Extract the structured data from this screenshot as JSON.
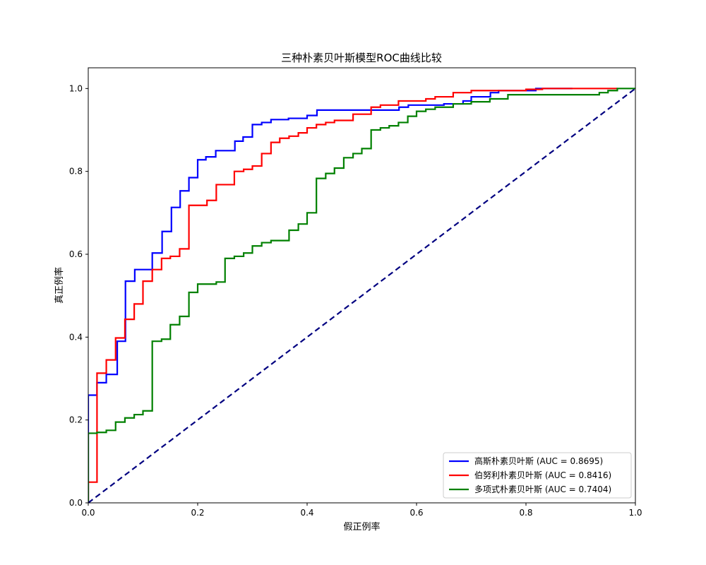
{
  "chart_data": {
    "type": "line",
    "title": "三种朴素贝叶斯模型ROC曲线比较",
    "xlabel": "假正例率",
    "ylabel": "真正例率",
    "xlim": [
      0,
      1
    ],
    "ylim": [
      0,
      1.05
    ],
    "x_ticks": [
      "0.0",
      "0.2",
      "0.4",
      "0.6",
      "0.8",
      "1.0"
    ],
    "y_ticks": [
      "0.0",
      "0.2",
      "0.4",
      "0.6",
      "0.8",
      "1.0"
    ],
    "grid": false,
    "legend_position": "bottom-right",
    "series": [
      {
        "name": "高斯朴素贝叶斯 (AUC = 0.8695)",
        "color": "#0000ff",
        "style": "step",
        "points": [
          [
            0,
            0
          ],
          [
            0,
            0.26
          ],
          [
            0.016,
            0.26
          ],
          [
            0.016,
            0.29
          ],
          [
            0.033,
            0.29
          ],
          [
            0.033,
            0.31
          ],
          [
            0.053,
            0.31
          ],
          [
            0.053,
            0.39
          ],
          [
            0.068,
            0.39
          ],
          [
            0.068,
            0.535
          ],
          [
            0.085,
            0.535
          ],
          [
            0.085,
            0.563
          ],
          [
            0.117,
            0.563
          ],
          [
            0.117,
            0.603
          ],
          [
            0.135,
            0.603
          ],
          [
            0.135,
            0.655
          ],
          [
            0.152,
            0.655
          ],
          [
            0.152,
            0.713
          ],
          [
            0.168,
            0.713
          ],
          [
            0.168,
            0.753
          ],
          [
            0.184,
            0.753
          ],
          [
            0.184,
            0.785
          ],
          [
            0.2,
            0.785
          ],
          [
            0.2,
            0.828
          ],
          [
            0.215,
            0.828
          ],
          [
            0.215,
            0.835
          ],
          [
            0.233,
            0.835
          ],
          [
            0.233,
            0.85
          ],
          [
            0.268,
            0.85
          ],
          [
            0.268,
            0.873
          ],
          [
            0.283,
            0.873
          ],
          [
            0.283,
            0.883
          ],
          [
            0.3,
            0.883
          ],
          [
            0.3,
            0.913
          ],
          [
            0.317,
            0.913
          ],
          [
            0.317,
            0.918
          ],
          [
            0.334,
            0.918
          ],
          [
            0.334,
            0.925
          ],
          [
            0.366,
            0.925
          ],
          [
            0.366,
            0.928
          ],
          [
            0.4,
            0.928
          ],
          [
            0.4,
            0.935
          ],
          [
            0.418,
            0.935
          ],
          [
            0.418,
            0.948
          ],
          [
            0.568,
            0.948
          ],
          [
            0.568,
            0.955
          ],
          [
            0.585,
            0.955
          ],
          [
            0.585,
            0.96
          ],
          [
            0.65,
            0.96
          ],
          [
            0.65,
            0.963
          ],
          [
            0.685,
            0.963
          ],
          [
            0.685,
            0.97
          ],
          [
            0.7,
            0.97
          ],
          [
            0.7,
            0.98
          ],
          [
            0.735,
            0.98
          ],
          [
            0.735,
            0.99
          ],
          [
            0.75,
            0.99
          ],
          [
            0.75,
            0.995
          ],
          [
            0.818,
            0.995
          ],
          [
            0.818,
            1.0
          ],
          [
            0.885,
            1.0
          ]
        ]
      },
      {
        "name": "伯努利朴素贝叶斯 (AUC = 0.8416)",
        "color": "#ff0000",
        "style": "step",
        "points": [
          [
            0,
            0
          ],
          [
            0,
            0.05
          ],
          [
            0.016,
            0.05
          ],
          [
            0.016,
            0.313
          ],
          [
            0.033,
            0.313
          ],
          [
            0.033,
            0.345
          ],
          [
            0.05,
            0.345
          ],
          [
            0.05,
            0.398
          ],
          [
            0.067,
            0.398
          ],
          [
            0.067,
            0.443
          ],
          [
            0.084,
            0.443
          ],
          [
            0.084,
            0.48
          ],
          [
            0.1,
            0.48
          ],
          [
            0.1,
            0.535
          ],
          [
            0.117,
            0.535
          ],
          [
            0.117,
            0.563
          ],
          [
            0.134,
            0.563
          ],
          [
            0.134,
            0.59
          ],
          [
            0.15,
            0.59
          ],
          [
            0.15,
            0.595
          ],
          [
            0.167,
            0.595
          ],
          [
            0.167,
            0.613
          ],
          [
            0.184,
            0.613
          ],
          [
            0.184,
            0.718
          ],
          [
            0.217,
            0.718
          ],
          [
            0.217,
            0.73
          ],
          [
            0.234,
            0.73
          ],
          [
            0.234,
            0.768
          ],
          [
            0.267,
            0.768
          ],
          [
            0.267,
            0.8
          ],
          [
            0.284,
            0.8
          ],
          [
            0.284,
            0.805
          ],
          [
            0.3,
            0.805
          ],
          [
            0.3,
            0.813
          ],
          [
            0.317,
            0.813
          ],
          [
            0.317,
            0.843
          ],
          [
            0.334,
            0.843
          ],
          [
            0.334,
            0.87
          ],
          [
            0.35,
            0.87
          ],
          [
            0.35,
            0.88
          ],
          [
            0.367,
            0.88
          ],
          [
            0.367,
            0.885
          ],
          [
            0.384,
            0.885
          ],
          [
            0.384,
            0.893
          ],
          [
            0.4,
            0.893
          ],
          [
            0.4,
            0.905
          ],
          [
            0.417,
            0.905
          ],
          [
            0.417,
            0.913
          ],
          [
            0.434,
            0.913
          ],
          [
            0.434,
            0.918
          ],
          [
            0.45,
            0.918
          ],
          [
            0.45,
            0.923
          ],
          [
            0.484,
            0.923
          ],
          [
            0.484,
            0.938
          ],
          [
            0.517,
            0.938
          ],
          [
            0.517,
            0.955
          ],
          [
            0.534,
            0.955
          ],
          [
            0.534,
            0.96
          ],
          [
            0.567,
            0.96
          ],
          [
            0.567,
            0.963
          ],
          [
            0.567,
            0.97
          ],
          [
            0.617,
            0.97
          ],
          [
            0.617,
            0.975
          ],
          [
            0.634,
            0.975
          ],
          [
            0.634,
            0.98
          ],
          [
            0.667,
            0.98
          ],
          [
            0.667,
            0.99
          ],
          [
            0.7,
            0.99
          ],
          [
            0.7,
            0.995
          ],
          [
            0.8,
            0.995
          ],
          [
            0.8,
            0.998
          ],
          [
            0.83,
            0.998
          ],
          [
            0.83,
            1.0
          ],
          [
            0.967,
            1.0
          ]
        ]
      },
      {
        "name": "多项式朴素贝叶斯 (AUC = 0.7404)",
        "color": "#008000",
        "style": "step",
        "points": [
          [
            0,
            0
          ],
          [
            0,
            0.168
          ],
          [
            0.016,
            0.168
          ],
          [
            0.016,
            0.17
          ],
          [
            0.033,
            0.17
          ],
          [
            0.033,
            0.175
          ],
          [
            0.05,
            0.175
          ],
          [
            0.05,
            0.195
          ],
          [
            0.067,
            0.195
          ],
          [
            0.067,
            0.205
          ],
          [
            0.084,
            0.205
          ],
          [
            0.084,
            0.213
          ],
          [
            0.1,
            0.213
          ],
          [
            0.1,
            0.222
          ],
          [
            0.117,
            0.222
          ],
          [
            0.117,
            0.39
          ],
          [
            0.134,
            0.39
          ],
          [
            0.134,
            0.395
          ],
          [
            0.15,
            0.395
          ],
          [
            0.15,
            0.43
          ],
          [
            0.167,
            0.43
          ],
          [
            0.167,
            0.45
          ],
          [
            0.184,
            0.45
          ],
          [
            0.184,
            0.508
          ],
          [
            0.2,
            0.508
          ],
          [
            0.2,
            0.528
          ],
          [
            0.234,
            0.528
          ],
          [
            0.234,
            0.533
          ],
          [
            0.25,
            0.533
          ],
          [
            0.25,
            0.59
          ],
          [
            0.267,
            0.59
          ],
          [
            0.267,
            0.595
          ],
          [
            0.284,
            0.595
          ],
          [
            0.284,
            0.603
          ],
          [
            0.3,
            0.603
          ],
          [
            0.3,
            0.62
          ],
          [
            0.317,
            0.62
          ],
          [
            0.317,
            0.628
          ],
          [
            0.334,
            0.628
          ],
          [
            0.334,
            0.633
          ],
          [
            0.367,
            0.633
          ],
          [
            0.367,
            0.658
          ],
          [
            0.384,
            0.658
          ],
          [
            0.384,
            0.673
          ],
          [
            0.4,
            0.673
          ],
          [
            0.4,
            0.7
          ],
          [
            0.417,
            0.7
          ],
          [
            0.417,
            0.783
          ],
          [
            0.434,
            0.783
          ],
          [
            0.434,
            0.795
          ],
          [
            0.45,
            0.795
          ],
          [
            0.45,
            0.808
          ],
          [
            0.467,
            0.808
          ],
          [
            0.467,
            0.833
          ],
          [
            0.484,
            0.833
          ],
          [
            0.484,
            0.843
          ],
          [
            0.5,
            0.843
          ],
          [
            0.5,
            0.855
          ],
          [
            0.517,
            0.855
          ],
          [
            0.517,
            0.9
          ],
          [
            0.534,
            0.9
          ],
          [
            0.534,
            0.905
          ],
          [
            0.55,
            0.905
          ],
          [
            0.55,
            0.91
          ],
          [
            0.567,
            0.91
          ],
          [
            0.567,
            0.918
          ],
          [
            0.584,
            0.918
          ],
          [
            0.584,
            0.933
          ],
          [
            0.6,
            0.933
          ],
          [
            0.6,
            0.945
          ],
          [
            0.617,
            0.945
          ],
          [
            0.617,
            0.95
          ],
          [
            0.634,
            0.95
          ],
          [
            0.634,
            0.955
          ],
          [
            0.667,
            0.955
          ],
          [
            0.667,
            0.963
          ],
          [
            0.7,
            0.963
          ],
          [
            0.7,
            0.968
          ],
          [
            0.734,
            0.968
          ],
          [
            0.734,
            0.975
          ],
          [
            0.767,
            0.975
          ],
          [
            0.767,
            0.985
          ],
          [
            0.934,
            0.985
          ],
          [
            0.934,
            0.99
          ],
          [
            0.95,
            0.99
          ],
          [
            0.95,
            0.995
          ],
          [
            0.967,
            0.995
          ],
          [
            0.967,
            1.0
          ],
          [
            1.0,
            1.0
          ]
        ]
      },
      {
        "name": "",
        "color": "#000080",
        "style": "dashed",
        "points": [
          [
            0,
            0
          ],
          [
            1,
            1
          ]
        ]
      }
    ]
  }
}
